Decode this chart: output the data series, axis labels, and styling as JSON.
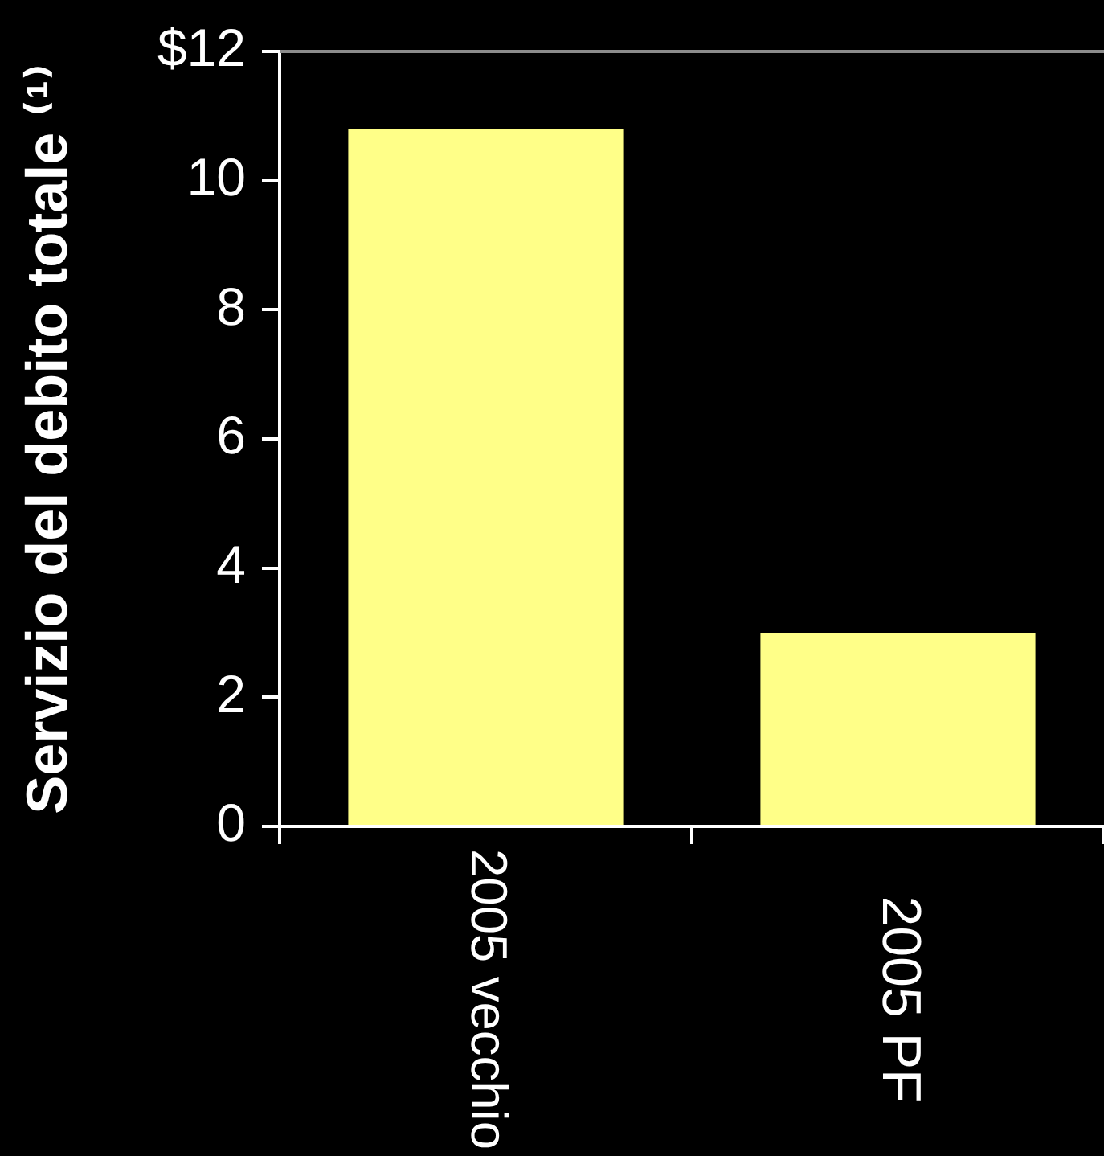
{
  "chart_data": {
    "type": "bar",
    "ylabel": "Servizio del debito totale ⁽¹⁾",
    "categories": [
      "2005 vecchio",
      "2005 PF"
    ],
    "values": [
      10.8,
      3.0
    ],
    "color": "#ffff88",
    "ylim": [
      0,
      12
    ],
    "yticks": [
      0,
      2,
      4,
      6,
      8,
      10,
      {
        "value": 12,
        "label": "$12"
      }
    ],
    "grid": false
  }
}
